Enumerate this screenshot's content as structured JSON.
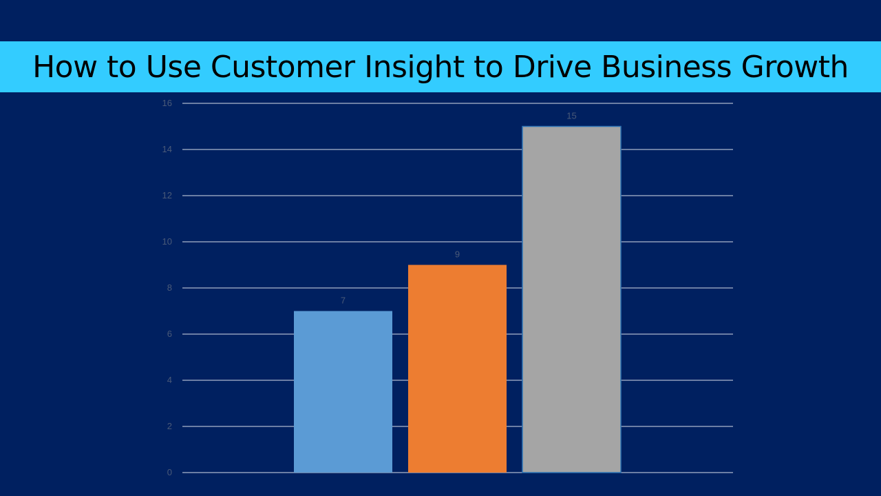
{
  "slide": {
    "title": "How to Use Customer Insight to Drive Business Growth",
    "background_color": "#002060",
    "title_bar_color": "#33CCFF"
  },
  "chart_data": {
    "type": "bar",
    "categories": [
      "",
      "",
      ""
    ],
    "values": [
      7,
      9,
      15
    ],
    "bar_colors": [
      "#5B9BD5",
      "#ED7D31",
      "#A5A5A5"
    ],
    "data_labels": [
      "7",
      "9",
      "15"
    ],
    "yticks": [
      "0",
      "2",
      "4",
      "6",
      "8",
      "10",
      "12",
      "14",
      "16"
    ],
    "ylim": [
      0,
      16
    ],
    "grid": true,
    "gridline_color": "#FFFFFF",
    "title": "",
    "xlabel": "",
    "ylabel": ""
  }
}
